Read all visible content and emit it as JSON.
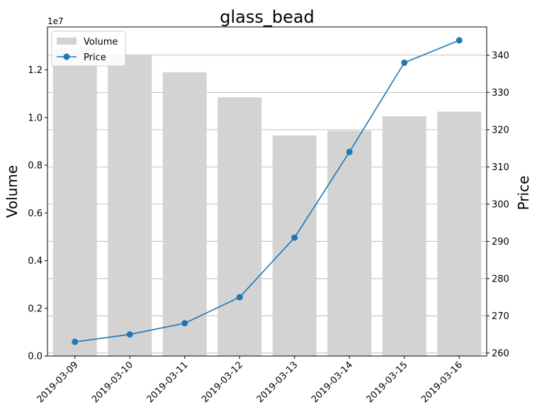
{
  "chart_data": {
    "type": "bar",
    "title": "glass_bead",
    "categories": [
      "2019-03-09",
      "2019-03-10",
      "2019-03-11",
      "2019-03-12",
      "2019-03-13",
      "2019-03-14",
      "2019-03-15",
      "2019-03-16"
    ],
    "series": [
      {
        "name": "Volume",
        "type": "bar",
        "axis": "left",
        "color": "#d3d3d3",
        "values": [
          12900000,
          12650000,
          11900000,
          10850000,
          9250000,
          9450000,
          10050000,
          10250000
        ]
      },
      {
        "name": "Price",
        "type": "line",
        "axis": "right",
        "color": "#1f77b4",
        "values": [
          263,
          265,
          268,
          275,
          291,
          314,
          338,
          344
        ]
      }
    ],
    "ylabel": "Volume",
    "y_offset_label": "1e7",
    "ylim": [
      0,
      13800000
    ],
    "yticks": [
      0,
      2000000,
      4000000,
      6000000,
      8000000,
      10000000,
      12000000
    ],
    "ytick_labels": [
      "0.0",
      "0.2",
      "0.4",
      "0.6",
      "0.8",
      "1.0",
      "1.2"
    ],
    "y2label": "Price",
    "y2lim": [
      259.2,
      347.6
    ],
    "y2ticks": [
      260,
      270,
      280,
      290,
      300,
      310,
      320,
      330,
      340
    ],
    "grid": "right-axis horizontal",
    "legend_position": "top-left"
  }
}
